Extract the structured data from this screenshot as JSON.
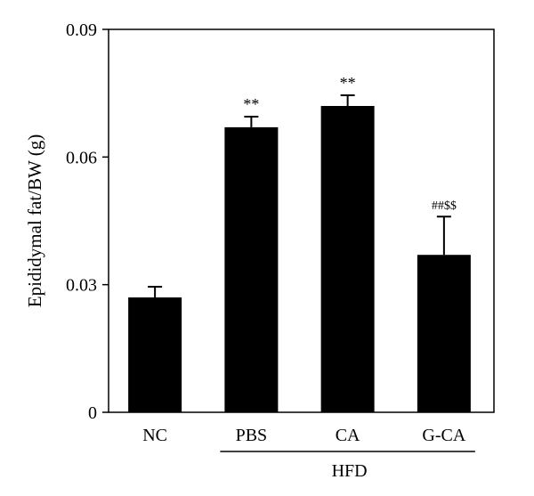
{
  "chart_data": {
    "type": "bar",
    "ylabel": "Epididymal fat/BW (g)",
    "ylim": [
      0,
      0.09
    ],
    "yticks": [
      "0",
      "0.03",
      "0.06",
      "0.09"
    ],
    "ytick_values": [
      0,
      0.03,
      0.06,
      0.09
    ],
    "categories": [
      "NC",
      "PBS",
      "CA",
      "G-CA"
    ],
    "values": [
      0.027,
      0.067,
      0.072,
      0.037
    ],
    "errors": [
      0.0025,
      0.0025,
      0.0025,
      0.009
    ],
    "annotations": [
      "",
      "**",
      "**",
      "##$$"
    ],
    "group_label": "HFD",
    "group_categories": [
      "PBS",
      "CA",
      "G-CA"
    ],
    "bar_color": "#000000"
  }
}
